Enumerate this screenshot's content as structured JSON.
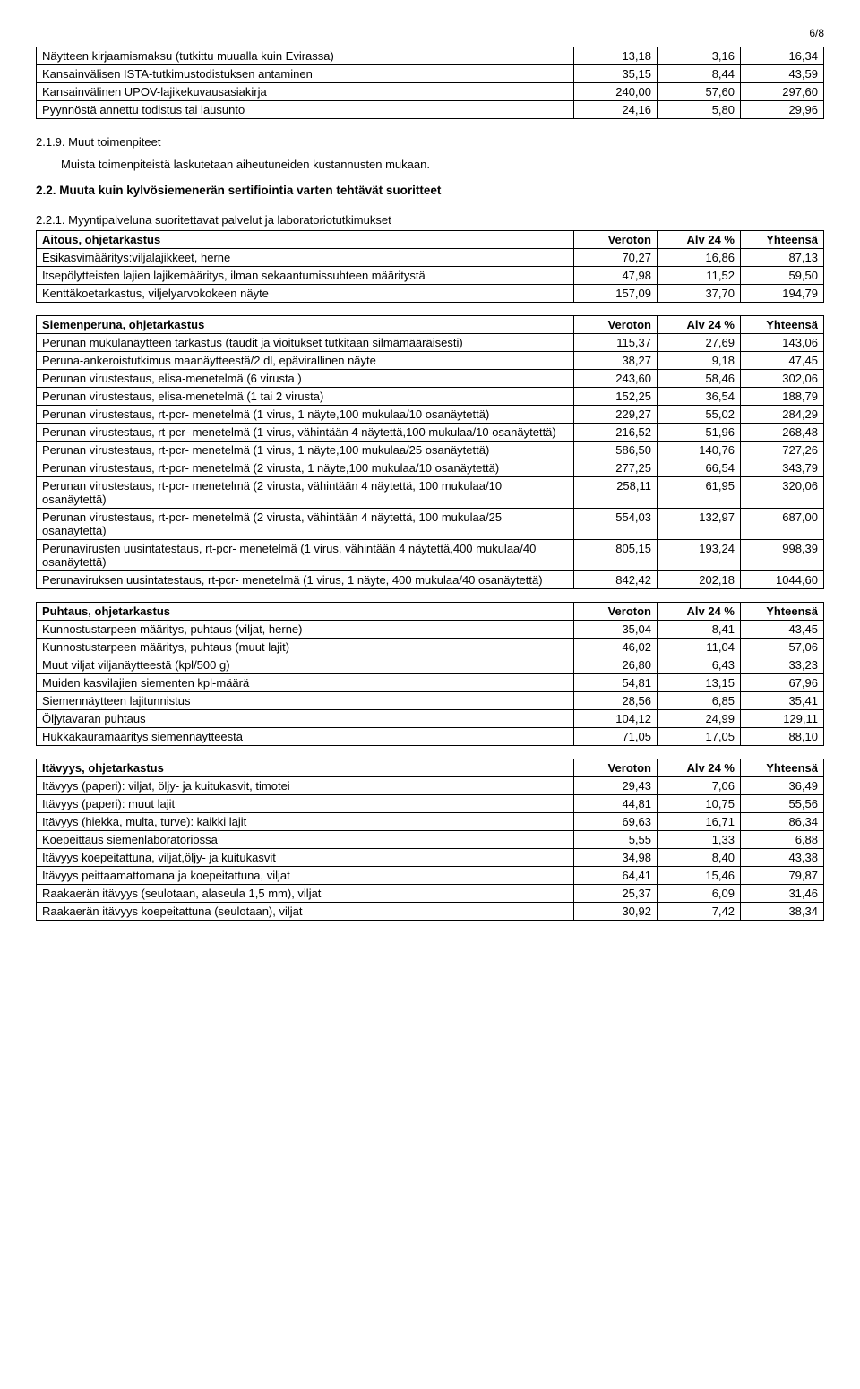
{
  "page_number": "6/8",
  "intro_table": {
    "rows": [
      [
        "Näytteen kirjaamismaksu (tutkittu muualla kuin Evirassa)",
        "13,18",
        "3,16",
        "16,34"
      ],
      [
        "Kansainvälisen ISTA-tutkimustodistuksen antaminen",
        "35,15",
        "8,44",
        "43,59"
      ],
      [
        "Kansainvälinen UPOV-lajikekuvausasiakirja",
        "240,00",
        "57,60",
        "297,60"
      ],
      [
        "Pyynnöstä annettu todistus tai lausunto",
        "24,16",
        "5,80",
        "29,96"
      ]
    ]
  },
  "sec219_num": "2.1.9. Muut toimenpiteet",
  "sec219_text": "Muista toimenpiteistä laskutetaan aiheutuneiden kustannusten mukaan.",
  "sec22_heading": "2.2. Muuta kuin kylvösiemenerän sertifiointia varten tehtävät suoritteet",
  "sec221_heading": "2.2.1. Myyntipalveluna suoritettavat palvelut ja laboratoriotutkimukset",
  "headers": {
    "c1": "Veroton",
    "c2": "Alv 24 %",
    "c3": "Yhteensä"
  },
  "aitous": {
    "title": "Aitous, ohjetarkastus",
    "rows": [
      [
        "Esikasvimääritys:viljalajikkeet, herne",
        "70,27",
        "16,86",
        "87,13"
      ],
      [
        "Itsepölytteisten lajien lajikemääritys, ilman sekaantumissuhteen määritystä",
        "47,98",
        "11,52",
        "59,50"
      ],
      [
        "Kenttäkoetarkastus, viljelyarvokokeen näyte",
        "157,09",
        "37,70",
        "194,79"
      ]
    ]
  },
  "siemenperuna": {
    "title": "Siemenperuna, ohjetarkastus",
    "rows": [
      [
        "Perunan mukulanäytteen tarkastus (taudit ja vioitukset tutkitaan silmämääräisesti)",
        "115,37",
        "27,69",
        "143,06"
      ],
      [
        "Peruna-ankeroistutkimus maanäytteestä/2 dl, epävirallinen näyte",
        "38,27",
        "9,18",
        "47,45"
      ],
      [
        "Perunan virustestaus, elisa-menetelmä (6 virusta )",
        "243,60",
        "58,46",
        "302,06"
      ],
      [
        "Perunan virustestaus, elisa-menetelmä (1 tai 2 virusta)",
        "152,25",
        "36,54",
        "188,79"
      ],
      [
        "Perunan virustestaus, rt-pcr- menetelmä (1 virus, 1 näyte,100 mukulaa/10 osanäytettä)",
        "229,27",
        "55,02",
        "284,29"
      ],
      [
        "Perunan virustestaus, rt-pcr- menetelmä (1 virus, vähintään 4 näytettä,100 mukulaa/10 osanäytettä)",
        "216,52",
        "51,96",
        "268,48"
      ],
      [
        "Perunan virustestaus, rt-pcr- menetelmä (1 virus, 1 näyte,100 mukulaa/25 osanäytettä)",
        "586,50",
        "140,76",
        "727,26"
      ],
      [
        "Perunan virustestaus, rt-pcr- menetelmä (2 virusta, 1 näyte,100 mukulaa/10 osanäytettä)",
        "277,25",
        "66,54",
        "343,79"
      ],
      [
        "Perunan virustestaus, rt-pcr- menetelmä (2 virusta, vähintään 4 näytettä, 100 mukulaa/10 osanäytettä)",
        "258,11",
        "61,95",
        "320,06"
      ],
      [
        "Perunan virustestaus, rt-pcr- menetelmä (2 virusta, vähintään 4 näytettä, 100 mukulaa/25 osanäytettä)",
        "554,03",
        "132,97",
        "687,00"
      ],
      [
        "Perunavirusten uusintatestaus, rt-pcr- menetelmä (1 virus, vähintään 4 näytettä,400 mukulaa/40 osanäytettä)",
        "805,15",
        "193,24",
        "998,39"
      ],
      [
        "Perunaviruksen uusintatestaus, rt-pcr- menetelmä (1 virus, 1 näyte, 400 mukulaa/40 osanäytettä)",
        "842,42",
        "202,18",
        "1044,60"
      ]
    ]
  },
  "puhtaus": {
    "title": "Puhtaus, ohjetarkastus",
    "rows": [
      [
        "Kunnostustarpeen määritys, puhtaus (viljat, herne)",
        "35,04",
        "8,41",
        "43,45"
      ],
      [
        "Kunnostustarpeen määritys, puhtaus (muut lajit)",
        "46,02",
        "11,04",
        "57,06"
      ],
      [
        "Muut viljat viljanäytteestä (kpl/500 g)",
        "26,80",
        "6,43",
        "33,23"
      ],
      [
        "Muiden kasvilajien siementen kpl-määrä",
        "54,81",
        "13,15",
        "67,96"
      ],
      [
        "Siemennäytteen lajitunnistus",
        "28,56",
        "6,85",
        "35,41"
      ],
      [
        "Öljytavaran puhtaus",
        "104,12",
        "24,99",
        "129,11"
      ],
      [
        "Hukkakauramääritys siemennäytteestä",
        "71,05",
        "17,05",
        "88,10"
      ]
    ]
  },
  "itavyys": {
    "title": "Itävyys, ohjetarkastus",
    "rows": [
      [
        "Itävyys (paperi): viljat, öljy- ja kuitukasvit, timotei",
        "29,43",
        "7,06",
        "36,49"
      ],
      [
        "Itävyys (paperi): muut lajit",
        "44,81",
        "10,75",
        "55,56"
      ],
      [
        "Itävyys (hiekka, multa, turve): kaikki lajit",
        "69,63",
        "16,71",
        "86,34"
      ],
      [
        "Koepeittaus siemenlaboratoriossa",
        "5,55",
        "1,33",
        "6,88"
      ],
      [
        "Itävyys koepeitattuna, viljat,öljy- ja kuitukasvit",
        "34,98",
        "8,40",
        "43,38"
      ],
      [
        "Itävyys peittaamattomana ja koepeitattuna, viljat",
        "64,41",
        "15,46",
        "79,87"
      ],
      [
        "Raakaerän itävyys (seulotaan, alaseula 1,5 mm), viljat",
        "25,37",
        "6,09",
        "31,46"
      ],
      [
        "Raakaerän itävyys koepeitattuna (seulotaan), viljat",
        "30,92",
        "7,42",
        "38,34"
      ]
    ]
  }
}
